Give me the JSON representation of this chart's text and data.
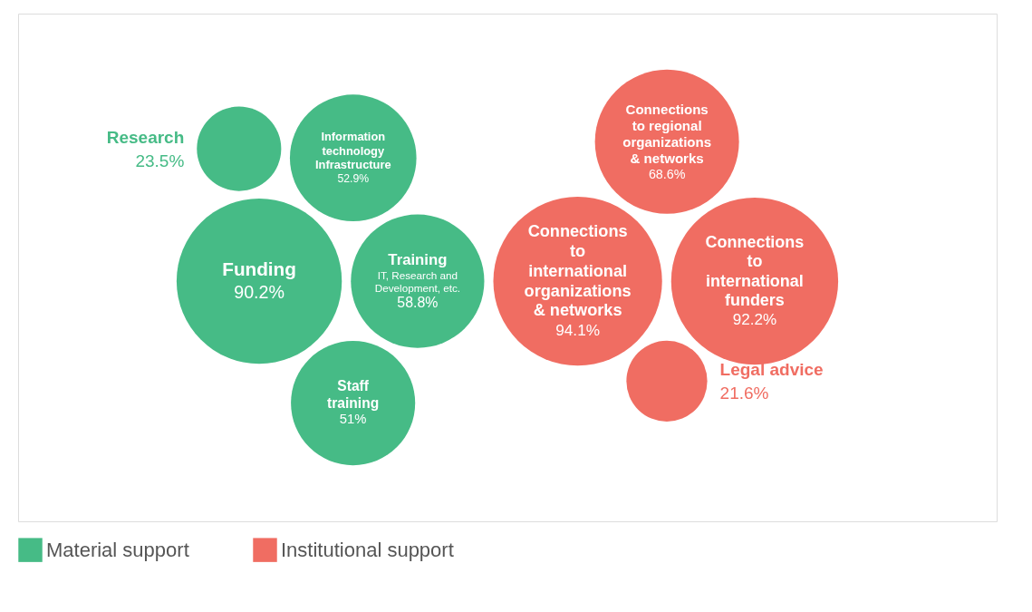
{
  "chart_data": {
    "type": "other",
    "categories": [
      "Staff training",
      "Funding",
      "Research",
      "Information technology Infrastructure",
      "Training",
      "Connections to international funders",
      "Legal advice",
      "Connections to international organizations & networks",
      "Connections to regional organizations & networks"
    ],
    "series": [
      {
        "name": "Material support",
        "color": "#46bb86",
        "values": [
          51,
          90.2,
          23.5,
          52.9,
          58.8,
          null,
          null,
          null,
          null
        ],
        "value_labels": [
          "51%",
          "90.2%",
          "23.5%",
          "52.9%",
          "58.8%",
          null,
          null,
          null,
          null
        ]
      },
      {
        "name": "Institutional support",
        "color": "#f06d62",
        "values": [
          null,
          null,
          null,
          null,
          null,
          92.2,
          21.6,
          94.1,
          68.6
        ],
        "value_labels": [
          null,
          null,
          null,
          null,
          null,
          "92.2%",
          "21.6%",
          "94.1%",
          "68.6%"
        ]
      }
    ],
    "annotations": [
      {
        "text": "IT, Research and Development, etc.",
        "x": "Training"
      }
    ],
    "legend": "bottom"
  }
}
